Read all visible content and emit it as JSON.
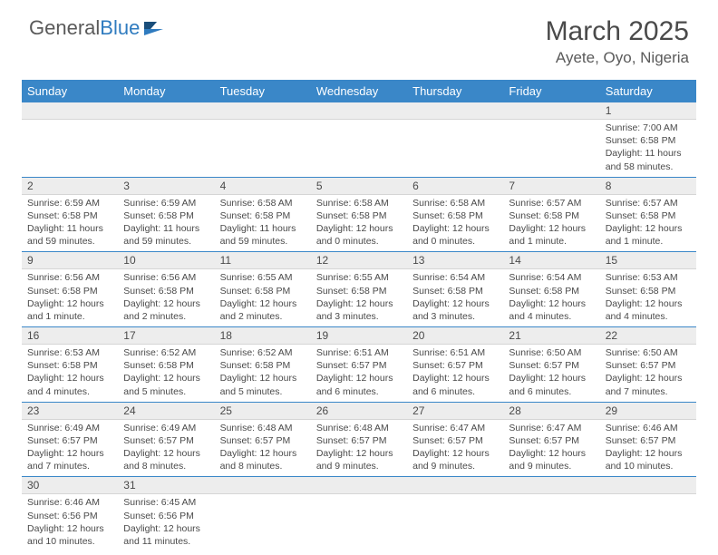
{
  "logo": {
    "text1": "General",
    "text2": "Blue"
  },
  "title": "March 2025",
  "location": "Ayete, Oyo, Nigeria",
  "colors": {
    "header_bg": "#3a87c8",
    "header_text": "#ffffff",
    "daynum_bg": "#ededed",
    "text": "#4a4a4a",
    "week_divider": "#3a87c8"
  },
  "weekdays": [
    "Sunday",
    "Monday",
    "Tuesday",
    "Wednesday",
    "Thursday",
    "Friday",
    "Saturday"
  ],
  "weeks": [
    [
      null,
      null,
      null,
      null,
      null,
      null,
      {
        "n": "1",
        "sr": "Sunrise: 7:00 AM",
        "ss": "Sunset: 6:58 PM",
        "dl": "Daylight: 11 hours and 58 minutes."
      }
    ],
    [
      {
        "n": "2",
        "sr": "Sunrise: 6:59 AM",
        "ss": "Sunset: 6:58 PM",
        "dl": "Daylight: 11 hours and 59 minutes."
      },
      {
        "n": "3",
        "sr": "Sunrise: 6:59 AM",
        "ss": "Sunset: 6:58 PM",
        "dl": "Daylight: 11 hours and 59 minutes."
      },
      {
        "n": "4",
        "sr": "Sunrise: 6:58 AM",
        "ss": "Sunset: 6:58 PM",
        "dl": "Daylight: 11 hours and 59 minutes."
      },
      {
        "n": "5",
        "sr": "Sunrise: 6:58 AM",
        "ss": "Sunset: 6:58 PM",
        "dl": "Daylight: 12 hours and 0 minutes."
      },
      {
        "n": "6",
        "sr": "Sunrise: 6:58 AM",
        "ss": "Sunset: 6:58 PM",
        "dl": "Daylight: 12 hours and 0 minutes."
      },
      {
        "n": "7",
        "sr": "Sunrise: 6:57 AM",
        "ss": "Sunset: 6:58 PM",
        "dl": "Daylight: 12 hours and 1 minute."
      },
      {
        "n": "8",
        "sr": "Sunrise: 6:57 AM",
        "ss": "Sunset: 6:58 PM",
        "dl": "Daylight: 12 hours and 1 minute."
      }
    ],
    [
      {
        "n": "9",
        "sr": "Sunrise: 6:56 AM",
        "ss": "Sunset: 6:58 PM",
        "dl": "Daylight: 12 hours and 1 minute."
      },
      {
        "n": "10",
        "sr": "Sunrise: 6:56 AM",
        "ss": "Sunset: 6:58 PM",
        "dl": "Daylight: 12 hours and 2 minutes."
      },
      {
        "n": "11",
        "sr": "Sunrise: 6:55 AM",
        "ss": "Sunset: 6:58 PM",
        "dl": "Daylight: 12 hours and 2 minutes."
      },
      {
        "n": "12",
        "sr": "Sunrise: 6:55 AM",
        "ss": "Sunset: 6:58 PM",
        "dl": "Daylight: 12 hours and 3 minutes."
      },
      {
        "n": "13",
        "sr": "Sunrise: 6:54 AM",
        "ss": "Sunset: 6:58 PM",
        "dl": "Daylight: 12 hours and 3 minutes."
      },
      {
        "n": "14",
        "sr": "Sunrise: 6:54 AM",
        "ss": "Sunset: 6:58 PM",
        "dl": "Daylight: 12 hours and 4 minutes."
      },
      {
        "n": "15",
        "sr": "Sunrise: 6:53 AM",
        "ss": "Sunset: 6:58 PM",
        "dl": "Daylight: 12 hours and 4 minutes."
      }
    ],
    [
      {
        "n": "16",
        "sr": "Sunrise: 6:53 AM",
        "ss": "Sunset: 6:58 PM",
        "dl": "Daylight: 12 hours and 4 minutes."
      },
      {
        "n": "17",
        "sr": "Sunrise: 6:52 AM",
        "ss": "Sunset: 6:58 PM",
        "dl": "Daylight: 12 hours and 5 minutes."
      },
      {
        "n": "18",
        "sr": "Sunrise: 6:52 AM",
        "ss": "Sunset: 6:58 PM",
        "dl": "Daylight: 12 hours and 5 minutes."
      },
      {
        "n": "19",
        "sr": "Sunrise: 6:51 AM",
        "ss": "Sunset: 6:57 PM",
        "dl": "Daylight: 12 hours and 6 minutes."
      },
      {
        "n": "20",
        "sr": "Sunrise: 6:51 AM",
        "ss": "Sunset: 6:57 PM",
        "dl": "Daylight: 12 hours and 6 minutes."
      },
      {
        "n": "21",
        "sr": "Sunrise: 6:50 AM",
        "ss": "Sunset: 6:57 PM",
        "dl": "Daylight: 12 hours and 6 minutes."
      },
      {
        "n": "22",
        "sr": "Sunrise: 6:50 AM",
        "ss": "Sunset: 6:57 PM",
        "dl": "Daylight: 12 hours and 7 minutes."
      }
    ],
    [
      {
        "n": "23",
        "sr": "Sunrise: 6:49 AM",
        "ss": "Sunset: 6:57 PM",
        "dl": "Daylight: 12 hours and 7 minutes."
      },
      {
        "n": "24",
        "sr": "Sunrise: 6:49 AM",
        "ss": "Sunset: 6:57 PM",
        "dl": "Daylight: 12 hours and 8 minutes."
      },
      {
        "n": "25",
        "sr": "Sunrise: 6:48 AM",
        "ss": "Sunset: 6:57 PM",
        "dl": "Daylight: 12 hours and 8 minutes."
      },
      {
        "n": "26",
        "sr": "Sunrise: 6:48 AM",
        "ss": "Sunset: 6:57 PM",
        "dl": "Daylight: 12 hours and 9 minutes."
      },
      {
        "n": "27",
        "sr": "Sunrise: 6:47 AM",
        "ss": "Sunset: 6:57 PM",
        "dl": "Daylight: 12 hours and 9 minutes."
      },
      {
        "n": "28",
        "sr": "Sunrise: 6:47 AM",
        "ss": "Sunset: 6:57 PM",
        "dl": "Daylight: 12 hours and 9 minutes."
      },
      {
        "n": "29",
        "sr": "Sunrise: 6:46 AM",
        "ss": "Sunset: 6:57 PM",
        "dl": "Daylight: 12 hours and 10 minutes."
      }
    ],
    [
      {
        "n": "30",
        "sr": "Sunrise: 6:46 AM",
        "ss": "Sunset: 6:56 PM",
        "dl": "Daylight: 12 hours and 10 minutes."
      },
      {
        "n": "31",
        "sr": "Sunrise: 6:45 AM",
        "ss": "Sunset: 6:56 PM",
        "dl": "Daylight: 12 hours and 11 minutes."
      },
      null,
      null,
      null,
      null,
      null
    ]
  ]
}
